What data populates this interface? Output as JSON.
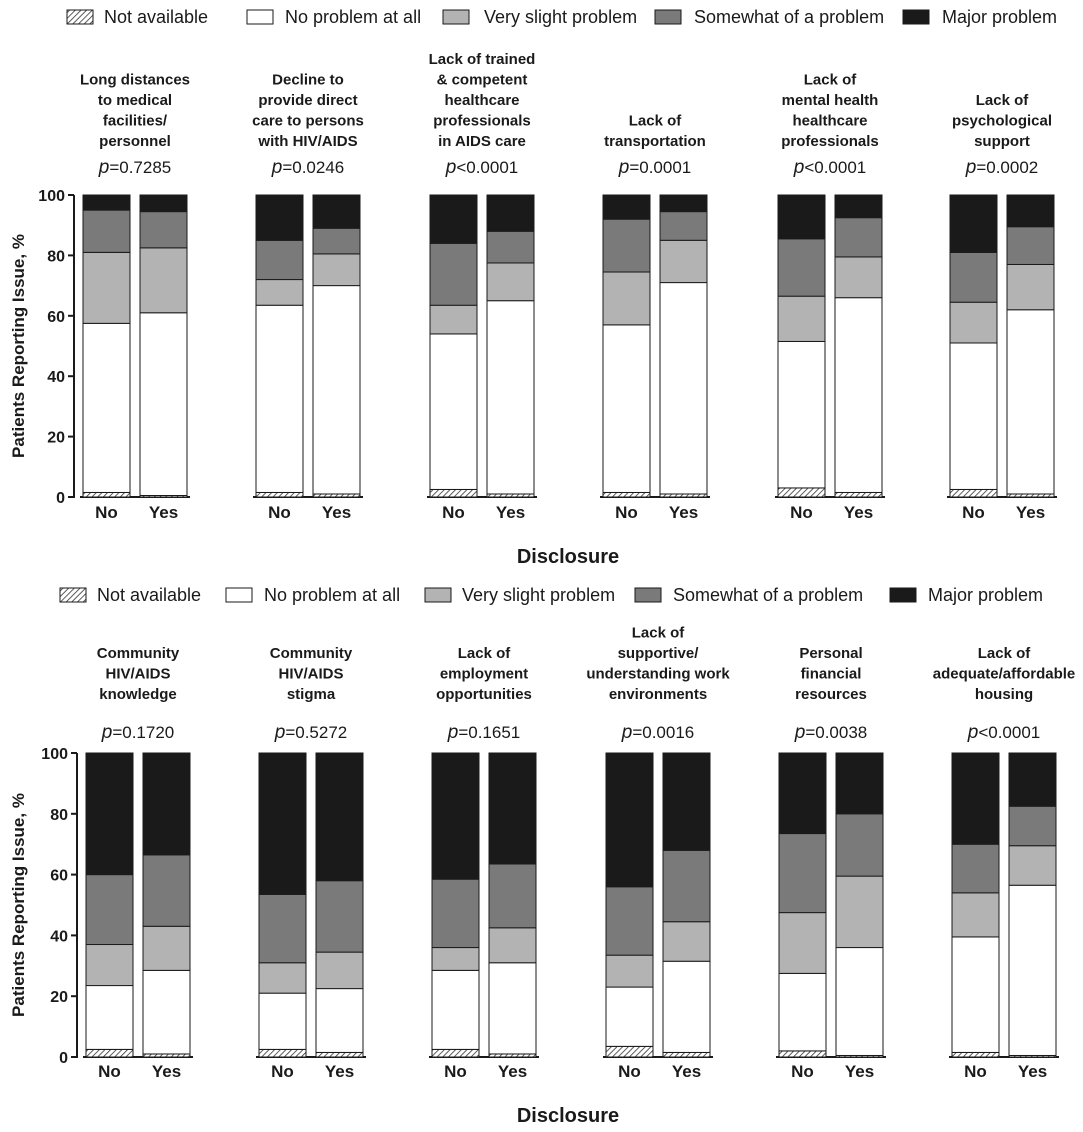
{
  "legend": [
    {
      "key": "na",
      "label": "Not available",
      "color": "hatch"
    },
    {
      "key": "none",
      "label": "No problem at all",
      "color": "#ffffff"
    },
    {
      "key": "slight",
      "label": "Very slight problem",
      "color": "#b3b3b3"
    },
    {
      "key": "somewhat",
      "label": "Somewhat of a problem",
      "color": "#7a7a7a"
    },
    {
      "key": "major",
      "label": "Major problem",
      "color": "#1a1a1a"
    }
  ],
  "chart_data": [
    {
      "type": "bar",
      "stacked": true,
      "xlabel": "Disclosure",
      "ylabel": "Patients Reporting Issue, %",
      "ylim": [
        0,
        100
      ],
      "yticks": [
        "0",
        "20",
        "40",
        "60",
        "80",
        "100"
      ],
      "legend_position": "top",
      "categories": [
        "No",
        "Yes"
      ],
      "groups": [
        {
          "title": [
            "Long distances",
            "to medical",
            "facilities/",
            "personnel"
          ],
          "p_prefix": "p",
          "p_value": "=0.7285",
          "bars": [
            {
              "na": 1.5,
              "none": 56,
              "slight": 23.5,
              "somewhat": 14,
              "major": 5
            },
            {
              "na": 0.5,
              "none": 60.5,
              "slight": 21.5,
              "somewhat": 12,
              "major": 5.5
            }
          ]
        },
        {
          "title": [
            "Decline to",
            "provide direct",
            "care to persons",
            "with HIV/AIDS"
          ],
          "p_prefix": "p",
          "p_value": "=0.0246",
          "bars": [
            {
              "na": 1.5,
              "none": 62,
              "slight": 8.5,
              "somewhat": 13,
              "major": 15
            },
            {
              "na": 1,
              "none": 69,
              "slight": 10.5,
              "somewhat": 8.5,
              "major": 11
            }
          ]
        },
        {
          "title": [
            "Lack of trained",
            "& competent",
            "healthcare",
            "professionals",
            "in AIDS care"
          ],
          "p_prefix": "p",
          "p_value": "<0.0001",
          "bars": [
            {
              "na": 2.5,
              "none": 51.5,
              "slight": 9.5,
              "somewhat": 20.5,
              "major": 16
            },
            {
              "na": 1,
              "none": 64,
              "slight": 12.5,
              "somewhat": 10.5,
              "major": 12
            }
          ]
        },
        {
          "title": [
            "Lack of",
            "transportation"
          ],
          "p_prefix": "p",
          "p_value": "=0.0001",
          "bars": [
            {
              "na": 1.5,
              "none": 55.5,
              "slight": 17.5,
              "somewhat": 17.5,
              "major": 8
            },
            {
              "na": 1,
              "none": 70,
              "slight": 14,
              "somewhat": 9.5,
              "major": 5.5
            }
          ]
        },
        {
          "title": [
            "Lack of",
            "mental health",
            "healthcare",
            "professionals"
          ],
          "p_prefix": "p",
          "p_value": "<0.0001",
          "bars": [
            {
              "na": 3,
              "none": 48.5,
              "slight": 15,
              "somewhat": 19,
              "major": 14.5
            },
            {
              "na": 1.5,
              "none": 64.5,
              "slight": 13.5,
              "somewhat": 13,
              "major": 7.5
            }
          ]
        },
        {
          "title": [
            "Lack of",
            "psychological",
            "support"
          ],
          "p_prefix": "p",
          "p_value": "=0.0002",
          "bars": [
            {
              "na": 2.5,
              "none": 48.5,
              "slight": 13.5,
              "somewhat": 16.5,
              "major": 19
            },
            {
              "na": 1,
              "none": 61,
              "slight": 15,
              "somewhat": 12.5,
              "major": 10.5
            }
          ]
        }
      ]
    },
    {
      "type": "bar",
      "stacked": true,
      "xlabel": "Disclosure",
      "ylabel": "Patients Reporting Issue, %",
      "ylim": [
        0,
        100
      ],
      "yticks": [
        "0",
        "20",
        "40",
        "60",
        "80",
        "100"
      ],
      "legend_position": "top",
      "categories": [
        "No",
        "Yes"
      ],
      "groups": [
        {
          "title": [
            "Community",
            "HIV/AIDS",
            "knowledge"
          ],
          "p_prefix": "p",
          "p_value": "=0.1720",
          "bars": [
            {
              "na": 2.5,
              "none": 21,
              "slight": 13.5,
              "somewhat": 23,
              "major": 40
            },
            {
              "na": 1,
              "none": 27.5,
              "slight": 14.5,
              "somewhat": 23.5,
              "major": 33.5
            }
          ]
        },
        {
          "title": [
            "Community",
            "HIV/AIDS",
            "stigma"
          ],
          "p_prefix": "p",
          "p_value": "=0.5272",
          "bars": [
            {
              "na": 2.5,
              "none": 18.5,
              "slight": 10,
              "somewhat": 22.5,
              "major": 46.5
            },
            {
              "na": 1.5,
              "none": 21,
              "slight": 12,
              "somewhat": 23.5,
              "major": 42
            }
          ]
        },
        {
          "title": [
            "Lack of",
            "employment",
            "opportunities"
          ],
          "p_prefix": "p",
          "p_value": "=0.1651",
          "bars": [
            {
              "na": 2.5,
              "none": 26,
              "slight": 7.5,
              "somewhat": 22.5,
              "major": 41.5
            },
            {
              "na": 1,
              "none": 30,
              "slight": 11.5,
              "somewhat": 21,
              "major": 36.5
            }
          ]
        },
        {
          "title": [
            "Lack of",
            "supportive/",
            "understanding work",
            "environments"
          ],
          "p_prefix": "p",
          "p_value": "=0.0016",
          "bars": [
            {
              "na": 3.5,
              "none": 19.5,
              "slight": 10.5,
              "somewhat": 22.5,
              "major": 44
            },
            {
              "na": 1.5,
              "none": 30,
              "slight": 13,
              "somewhat": 23.5,
              "major": 32
            }
          ]
        },
        {
          "title": [
            "Personal",
            "financial",
            "resources"
          ],
          "p_prefix": "p",
          "p_value": "=0.0038",
          "bars": [
            {
              "na": 2,
              "none": 25.5,
              "slight": 20,
              "somewhat": 26,
              "major": 26.5
            },
            {
              "na": 0.5,
              "none": 35.5,
              "slight": 23.5,
              "somewhat": 20.5,
              "major": 20
            }
          ]
        },
        {
          "title": [
            "Lack of",
            "adequate/affordable",
            "housing"
          ],
          "p_prefix": "p",
          "p_value": "<0.0001",
          "bars": [
            {
              "na": 1.5,
              "none": 38,
              "slight": 14.5,
              "somewhat": 16,
              "major": 30
            },
            {
              "na": 0.5,
              "none": 56,
              "slight": 13,
              "somewhat": 13,
              "major": 17.5
            }
          ]
        }
      ]
    }
  ]
}
